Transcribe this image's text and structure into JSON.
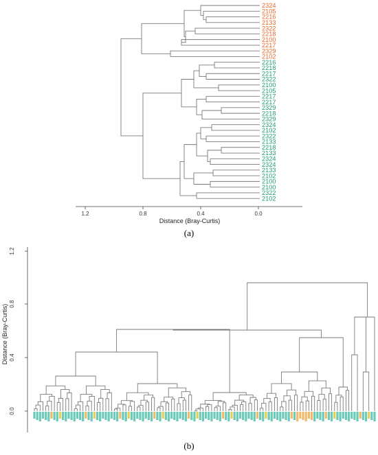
{
  "panel_a": {
    "caption": "(a)",
    "axis_label": "Distance (Bray-Curtis)",
    "ticks": [
      "1.2",
      "0.8",
      "0.4",
      "0.0"
    ],
    "colors": {
      "orange": "#e8692a",
      "green": "#1e9e74"
    },
    "leaves": [
      {
        "label": "2324",
        "group": "orange"
      },
      {
        "label": "2105",
        "group": "orange"
      },
      {
        "label": "2216",
        "group": "orange"
      },
      {
        "label": "2133",
        "group": "orange"
      },
      {
        "label": "2322",
        "group": "orange"
      },
      {
        "label": "2218",
        "group": "orange"
      },
      {
        "label": "2100",
        "group": "orange"
      },
      {
        "label": "2217",
        "group": "orange"
      },
      {
        "label": "2329",
        "group": "orange"
      },
      {
        "label": "2102",
        "group": "orange"
      },
      {
        "label": "2216",
        "group": "green"
      },
      {
        "label": "2218",
        "group": "green"
      },
      {
        "label": "2217",
        "group": "green"
      },
      {
        "label": "2322",
        "group": "green"
      },
      {
        "label": "2100",
        "group": "green"
      },
      {
        "label": "2105",
        "group": "green"
      },
      {
        "label": "2217",
        "group": "green"
      },
      {
        "label": "2217",
        "group": "green"
      },
      {
        "label": "2329",
        "group": "green"
      },
      {
        "label": "2218",
        "group": "green"
      },
      {
        "label": "2329",
        "group": "green"
      },
      {
        "label": "2324",
        "group": "green"
      },
      {
        "label": "2102",
        "group": "green"
      },
      {
        "label": "2322",
        "group": "green"
      },
      {
        "label": "2133",
        "group": "green"
      },
      {
        "label": "2218",
        "group": "green"
      },
      {
        "label": "2133",
        "group": "green"
      },
      {
        "label": "2324",
        "group": "green"
      },
      {
        "label": "2324",
        "group": "green"
      },
      {
        "label": "2133",
        "group": "green"
      },
      {
        "label": "2102",
        "group": "green"
      },
      {
        "label": "2100",
        "group": "green"
      },
      {
        "label": "2100",
        "group": "green"
      },
      {
        "label": "2322",
        "group": "green"
      },
      {
        "label": "2102",
        "group": "green"
      }
    ]
  },
  "panel_b": {
    "caption": "(b)",
    "axis_label": "Distance (Bray-Curtis)",
    "ticks": [
      "1.2",
      "0.8",
      "0.4",
      "0.0"
    ],
    "colors": {
      "teal": "#3bb8a0",
      "orange": "#e8a33a",
      "yellow": "#d9c21e"
    }
  }
}
